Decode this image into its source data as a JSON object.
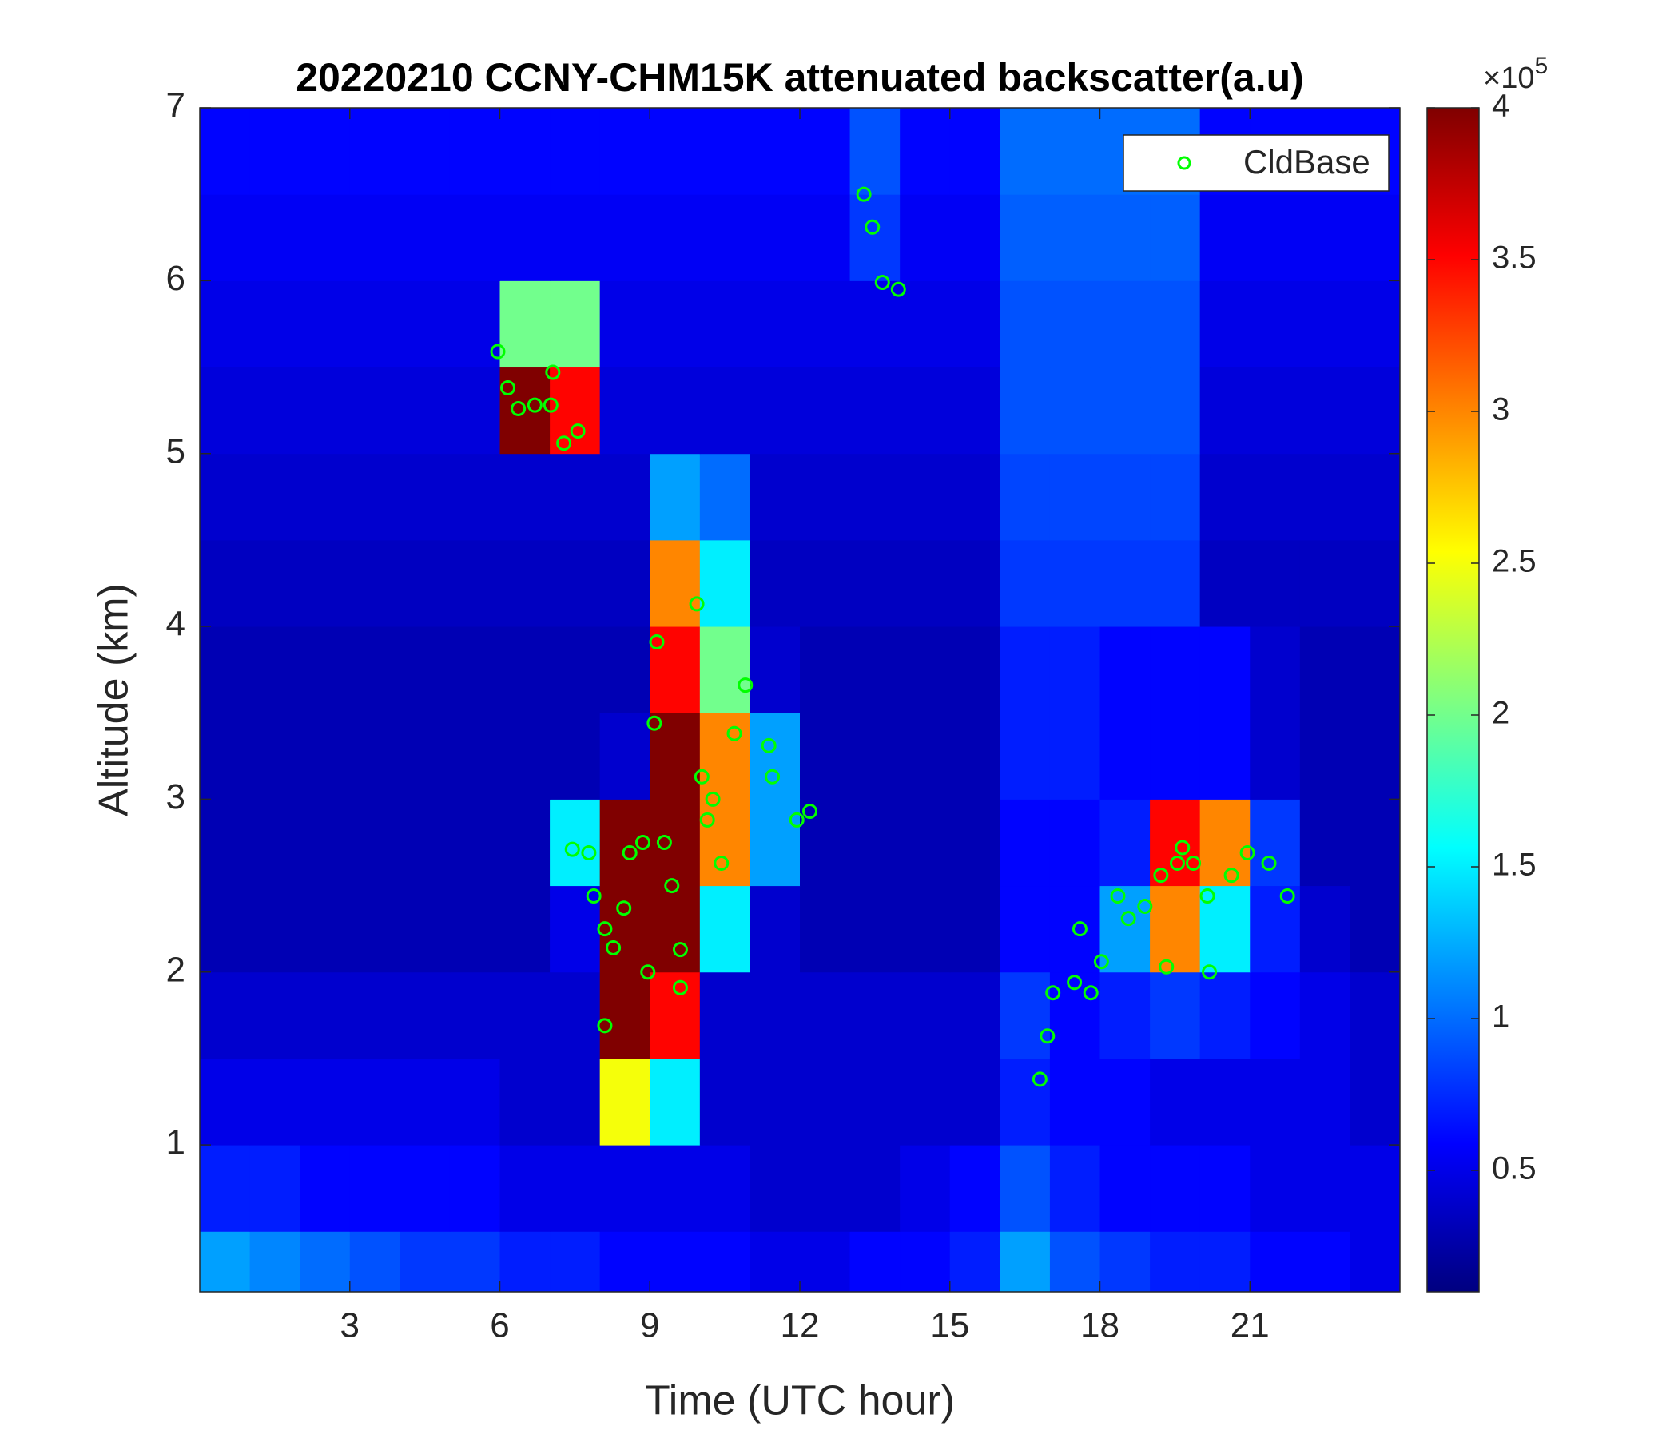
{
  "chart_data": {
    "type": "heatmap",
    "title": "20220210 CCNY-CHM15K attenuated backscatter(a.u)",
    "x_label": "Time (UTC hour)",
    "y_label": "Altitude (km)",
    "colormap": "jet",
    "colorbar_base": "×10",
    "colorbar_exponent": "5",
    "xlim": [
      0,
      24
    ],
    "xticks": [
      3,
      6,
      9,
      12,
      15,
      18,
      21
    ],
    "ylim": [
      0.15,
      7
    ],
    "yticks": [
      1,
      2,
      3,
      4,
      5,
      6,
      7
    ],
    "clim": [
      0.1,
      4
    ],
    "cticks": [
      0.5,
      1,
      1.5,
      2,
      2.5,
      3,
      3.5,
      4
    ],
    "x_edges": [
      0,
      1,
      2,
      3,
      4,
      5,
      6,
      7,
      8,
      9,
      10,
      11,
      12,
      13,
      14,
      15,
      16,
      17,
      18,
      19,
      20,
      21,
      22,
      23,
      24
    ],
    "y_edges": [
      0.15,
      0.5,
      1,
      1.5,
      2,
      2.5,
      3,
      3.5,
      4,
      4.5,
      5,
      5.5,
      6,
      6.5,
      7
    ],
    "z": [
      [
        1.2,
        1.1,
        1.0,
        0.9,
        0.8,
        0.8,
        0.7,
        0.7,
        0.6,
        0.6,
        0.6,
        0.5,
        0.5,
        0.6,
        0.6,
        0.7,
        1.2,
        0.9,
        0.8,
        0.7,
        0.7,
        0.6,
        0.6,
        0.5
      ],
      [
        0.7,
        0.7,
        0.6,
        0.6,
        0.6,
        0.6,
        0.5,
        0.5,
        0.5,
        0.5,
        0.5,
        0.4,
        0.4,
        0.4,
        0.5,
        0.6,
        0.9,
        0.7,
        0.6,
        0.6,
        0.6,
        0.5,
        0.5,
        0.5
      ],
      [
        0.5,
        0.5,
        0.5,
        0.5,
        0.5,
        0.5,
        0.4,
        0.4,
        2.5,
        1.5,
        0.4,
        0.4,
        0.4,
        0.4,
        0.4,
        0.4,
        0.7,
        0.6,
        0.6,
        0.5,
        0.5,
        0.5,
        0.5,
        0.4
      ],
      [
        0.4,
        0.4,
        0.4,
        0.4,
        0.4,
        0.4,
        0.4,
        0.4,
        4,
        3.5,
        0.4,
        0.4,
        0.4,
        0.4,
        0.4,
        0.4,
        0.8,
        0.6,
        0.7,
        0.8,
        0.7,
        0.6,
        0.5,
        0.4
      ],
      [
        0.3,
        0.3,
        0.3,
        0.3,
        0.3,
        0.3,
        0.3,
        0.5,
        4,
        4,
        1.5,
        0.4,
        0.3,
        0.3,
        0.3,
        0.3,
        0.6,
        0.6,
        1.2,
        3,
        1.5,
        0.7,
        0.4,
        0.3
      ],
      [
        0.3,
        0.3,
        0.3,
        0.3,
        0.3,
        0.3,
        0.3,
        1.5,
        4,
        4,
        3,
        1.2,
        0.3,
        0.3,
        0.3,
        0.3,
        0.6,
        0.6,
        0.7,
        3.5,
        3,
        0.8,
        0.3,
        0.3
      ],
      [
        0.3,
        0.3,
        0.3,
        0.3,
        0.3,
        0.3,
        0.3,
        0.3,
        0.4,
        4,
        3,
        1.2,
        0.3,
        0.3,
        0.3,
        0.3,
        0.7,
        0.7,
        0.6,
        0.6,
        0.6,
        0.4,
        0.3,
        0.3
      ],
      [
        0.3,
        0.3,
        0.3,
        0.3,
        0.3,
        0.3,
        0.3,
        0.3,
        0.3,
        3.5,
        2,
        0.4,
        0.3,
        0.3,
        0.3,
        0.3,
        0.7,
        0.7,
        0.6,
        0.6,
        0.6,
        0.4,
        0.3,
        0.3
      ],
      [
        0.35,
        0.35,
        0.35,
        0.35,
        0.35,
        0.35,
        0.35,
        0.35,
        0.35,
        3,
        1.5,
        0.35,
        0.35,
        0.35,
        0.35,
        0.35,
        0.8,
        0.8,
        0.8,
        0.8,
        0.35,
        0.35,
        0.35,
        0.35
      ],
      [
        0.4,
        0.4,
        0.4,
        0.4,
        0.4,
        0.4,
        0.4,
        0.4,
        0.4,
        1.2,
        1,
        0.4,
        0.4,
        0.4,
        0.4,
        0.4,
        0.85,
        0.85,
        0.85,
        0.85,
        0.4,
        0.4,
        0.4,
        0.4
      ],
      [
        0.45,
        0.45,
        0.45,
        0.45,
        0.45,
        0.45,
        4,
        3.5,
        0.45,
        0.45,
        0.45,
        0.45,
        0.45,
        0.45,
        0.45,
        0.45,
        0.9,
        0.9,
        0.9,
        0.9,
        0.45,
        0.45,
        0.45,
        0.45
      ],
      [
        0.5,
        0.5,
        0.5,
        0.5,
        0.5,
        0.5,
        2,
        2,
        0.5,
        0.5,
        0.5,
        0.5,
        0.5,
        0.5,
        0.5,
        0.5,
        0.9,
        0.9,
        0.9,
        0.9,
        0.5,
        0.5,
        0.5,
        0.5
      ],
      [
        0.55,
        0.55,
        0.55,
        0.55,
        0.55,
        0.55,
        0.55,
        0.55,
        0.55,
        0.55,
        0.55,
        0.55,
        0.55,
        0.8,
        0.55,
        0.55,
        0.95,
        0.95,
        0.95,
        0.95,
        0.55,
        0.55,
        0.55,
        0.55
      ],
      [
        0.6,
        0.6,
        0.6,
        0.6,
        0.6,
        0.6,
        0.6,
        0.6,
        0.6,
        0.6,
        0.6,
        0.6,
        0.6,
        0.9,
        0.6,
        0.6,
        1.0,
        1.0,
        1.0,
        1.0,
        0.6,
        0.6,
        0.6,
        0.6
      ]
    ],
    "series": [
      {
        "name": "CldBase",
        "color": "#00ff00",
        "type": "scatter",
        "x": [
          5.96,
          6.16,
          6.37,
          6.7,
          7.02,
          7.06,
          7.28,
          7.56,
          13.28,
          13.45,
          13.65,
          13.97,
          7.45,
          7.78,
          7.88,
          8.1,
          8.27,
          8.48,
          8.6,
          8.86,
          8.96,
          8.1,
          9.14,
          9.09,
          9.29,
          9.44,
          9.61,
          9.94,
          10.04,
          10.15,
          10.26,
          10.43,
          10.69,
          10.91,
          11.38,
          11.45,
          11.94,
          12.2,
          9.61,
          16.8,
          16.95,
          17.06,
          17.49,
          17.6,
          17.82,
          18.03,
          18.36,
          18.57,
          18.9,
          19.22,
          19.55,
          19.65,
          19.87,
          20.19,
          20.15,
          20.63,
          20.95,
          21.38,
          21.75,
          19.33
        ],
        "values": [
          5.59,
          5.38,
          5.26,
          5.28,
          5.28,
          5.47,
          5.06,
          5.13,
          6.5,
          6.31,
          5.99,
          5.95,
          2.71,
          2.69,
          2.44,
          2.25,
          2.14,
          2.37,
          2.69,
          2.75,
          2.0,
          1.69,
          3.91,
          3.44,
          2.75,
          2.5,
          2.13,
          4.13,
          3.13,
          2.88,
          3.0,
          2.63,
          3.38,
          3.66,
          3.31,
          3.13,
          2.88,
          2.93,
          1.91,
          1.38,
          1.63,
          1.88,
          1.94,
          2.25,
          1.88,
          2.06,
          2.44,
          2.31,
          2.38,
          2.56,
          2.63,
          2.72,
          2.63,
          2.0,
          2.44,
          2.56,
          2.69,
          2.63,
          2.44,
          2.03
        ]
      }
    ],
    "legend": "upper right"
  }
}
